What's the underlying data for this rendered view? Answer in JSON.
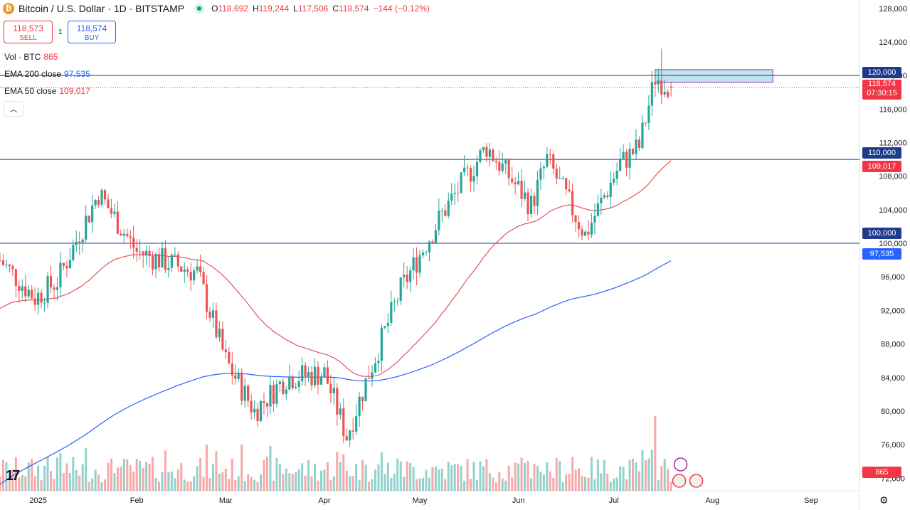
{
  "header": {
    "title": "Bitcoin / U.S. Dollar · 1D · BITSTAMP",
    "open_label": "O",
    "open": "118,692",
    "high_label": "H",
    "high": "119,244",
    "low_label": "L",
    "low": "117,506",
    "close_label": "C",
    "close": "118,574",
    "change": "−144 (−0.12%)"
  },
  "trade": {
    "sell_price": "118,573",
    "sell_label": "SELL",
    "spread": "1",
    "buy_price": "118,574",
    "buy_label": "BUY"
  },
  "indicators": {
    "vol_label": "Vol · BTC",
    "vol_value": "865",
    "ema200_label": "EMA 200 close",
    "ema200_value": "97,535",
    "ema50_label": "EMA 50 close",
    "ema50_value": "109,017"
  },
  "tags": {
    "level_120k": "120,000",
    "last_price": "118,574",
    "countdown": "07:30:15",
    "level_110k": "110,000",
    "ema50": "109,017",
    "level_100k": "100,000",
    "ema200": "97,535",
    "volume": "865"
  },
  "colors": {
    "up": "#26a69a",
    "down": "#ef5350",
    "ema50": "#e0555a",
    "ema200": "#2962ff",
    "hline": "#1e3a8a",
    "zone_fill": "#bfe3ee",
    "zone_border": "#9c27b0"
  },
  "chart_data": {
    "type": "candlestick",
    "title": "Bitcoin / U.S. Dollar · 1D · BITSTAMP",
    "y_ticks": [
      72000,
      76000,
      80000,
      84000,
      88000,
      92000,
      96000,
      100000,
      104000,
      108000,
      112000,
      116000,
      120000,
      124000,
      128000
    ],
    "y_tick_labels": [
      "72,000",
      "76,000",
      "80,000",
      "84,000",
      "88,000",
      "92,000",
      "96,000",
      "100,000",
      "104,000",
      "108,000",
      "112,000",
      "116,000",
      "120,000",
      "124,000",
      "128,000"
    ],
    "ylim": [
      70500,
      129000
    ],
    "x_labels": [
      "2025",
      "Feb",
      "Mar",
      "Apr",
      "May",
      "Jun",
      "Jul",
      "Aug",
      "Sep"
    ],
    "horizontal_levels": [
      120000,
      110000,
      100000
    ],
    "resistance_zone": {
      "from": "2025-07-14",
      "to": "2025-08-20",
      "low": 119200,
      "high": 120700
    },
    "ema200_last": 97535,
    "ema50_last": 109017,
    "last_close": 118574,
    "last_volume": 865,
    "waypoints": [
      {
        "date": "2024-12-20",
        "close": 98000
      },
      {
        "date": "2024-12-31",
        "close": 93500
      },
      {
        "date": "2025-01-07",
        "close": 95500
      },
      {
        "date": "2025-01-20",
        "close": 106000
      },
      {
        "date": "2025-02-01",
        "close": 99000
      },
      {
        "date": "2025-02-20",
        "close": 96500
      },
      {
        "date": "2025-03-01",
        "close": 86000
      },
      {
        "date": "2025-03-10",
        "close": 80000
      },
      {
        "date": "2025-03-20",
        "close": 84000
      },
      {
        "date": "2025-04-01",
        "close": 84500
      },
      {
        "date": "2025-04-08",
        "close": 77000
      },
      {
        "date": "2025-04-15",
        "close": 84500
      },
      {
        "date": "2025-04-25",
        "close": 94500
      },
      {
        "date": "2025-05-08",
        "close": 103500
      },
      {
        "date": "2025-05-22",
        "close": 111500
      },
      {
        "date": "2025-06-05",
        "close": 104500
      },
      {
        "date": "2025-06-10",
        "close": 110000
      },
      {
        "date": "2025-06-22",
        "close": 101000
      },
      {
        "date": "2025-07-03",
        "close": 109500
      },
      {
        "date": "2025-07-09",
        "close": 111500
      },
      {
        "date": "2025-07-14",
        "close": 119800
      },
      {
        "date": "2025-07-19",
        "close": 118574
      }
    ]
  }
}
